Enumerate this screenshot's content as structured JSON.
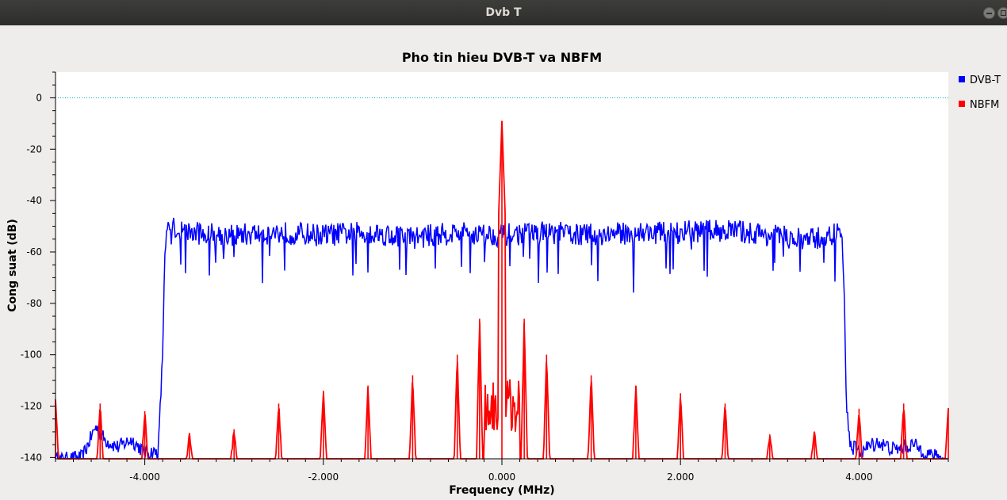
{
  "window": {
    "title": "Dvb T"
  },
  "chart_data": {
    "type": "line",
    "title": "Pho tin hieu DVB-T va NBFM",
    "xlabel": "Frequency (MHz)",
    "ylabel": "Cong suat (dB)",
    "xlim": [
      -5.0,
      5.0
    ],
    "ylim": [
      -140,
      10
    ],
    "xticks": [
      -4,
      -2,
      0,
      2,
      4
    ],
    "xtick_labels": [
      "-4.000",
      "-2.000",
      "0.000",
      "2.000",
      "4.000"
    ],
    "yticks": [
      0,
      -20,
      -40,
      -60,
      -80,
      -100,
      -120,
      -140
    ],
    "ytick_labels": [
      "0",
      "-20",
      "-40",
      "-60",
      "-80",
      "-100",
      "-120",
      "-140"
    ],
    "reference_line_db": 0,
    "legend_position": "top-right outside",
    "series": [
      {
        "name": "DVB-T",
        "color": "#0000ff",
        "x": [
          -4.95,
          -4.7,
          -4.55,
          -4.45,
          -4.3,
          -4.15,
          -4.0,
          -3.85,
          -3.8,
          -3.78,
          -3.75,
          -3.7,
          -3.5,
          -3.0,
          -2.5,
          -2.0,
          -1.5,
          -1.0,
          -0.5,
          0.0,
          0.5,
          1.0,
          1.5,
          2.0,
          2.5,
          3.0,
          3.4,
          3.6,
          3.8,
          3.83,
          3.86,
          3.9,
          4.0,
          4.2,
          4.4,
          4.6,
          4.8,
          4.95
        ],
        "values": [
          -141,
          -140,
          -128,
          -133,
          -136,
          -133,
          -138,
          -138,
          -100,
          -65,
          -52,
          -50,
          -52,
          -53,
          -52,
          -53,
          -52,
          -54,
          -52,
          -53,
          -52,
          -53,
          -52,
          -52,
          -51,
          -53,
          -55,
          -54,
          -52,
          -70,
          -120,
          -135,
          -138,
          -134,
          -137,
          -135,
          -139,
          -141
        ]
      },
      {
        "name": "NBFM",
        "color": "#ff0000",
        "carrier": {
          "x": 0.0,
          "peak": -9
        },
        "sidebands": [
          {
            "x": -5.0,
            "peak": -118
          },
          {
            "x": -4.5,
            "peak": -119
          },
          {
            "x": -4.0,
            "peak": -122
          },
          {
            "x": -3.5,
            "peak": -131
          },
          {
            "x": -3.0,
            "peak": -129
          },
          {
            "x": -2.5,
            "peak": -119
          },
          {
            "x": -2.0,
            "peak": -114
          },
          {
            "x": -1.5,
            "peak": -112
          },
          {
            "x": -1.0,
            "peak": -108
          },
          {
            "x": -0.5,
            "peak": -100
          },
          {
            "x": -0.25,
            "peak": -86
          },
          {
            "x": 0.25,
            "peak": -86
          },
          {
            "x": 0.5,
            "peak": -100
          },
          {
            "x": 1.0,
            "peak": -108
          },
          {
            "x": 1.5,
            "peak": -112
          },
          {
            "x": 2.0,
            "peak": -115
          },
          {
            "x": 2.5,
            "peak": -119
          },
          {
            "x": 3.0,
            "peak": -131
          },
          {
            "x": 3.5,
            "peak": -130
          },
          {
            "x": 4.0,
            "peak": -121
          },
          {
            "x": 4.5,
            "peak": -119
          },
          {
            "x": 5.0,
            "peak": -121
          }
        ]
      }
    ]
  }
}
